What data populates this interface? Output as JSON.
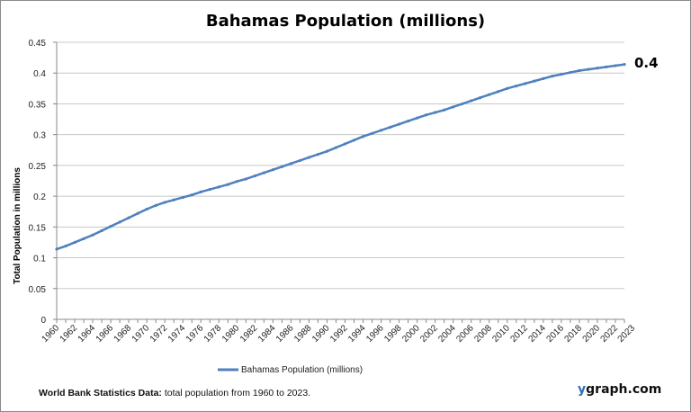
{
  "chart_data": {
    "type": "line",
    "title": "Bahamas Population (millions)",
    "xlabel": "",
    "ylabel": "Total Population  in millions",
    "ylim": [
      0,
      0.45
    ],
    "yticks": [
      "0",
      "0.05",
      "0.1",
      "0.15",
      "0.2",
      "0.25",
      "0.3",
      "0.35",
      "0.4",
      "0.45"
    ],
    "grid": true,
    "legend_position": "bottom",
    "end_label": "0.4",
    "color": "#4f81bd",
    "series": [
      {
        "name": "Bahamas Population (millions)",
        "x": [
          1960,
          1961,
          1962,
          1963,
          1964,
          1965,
          1966,
          1967,
          1968,
          1969,
          1970,
          1971,
          1972,
          1973,
          1974,
          1975,
          1976,
          1977,
          1978,
          1979,
          1980,
          1981,
          1982,
          1983,
          1984,
          1985,
          1986,
          1987,
          1988,
          1989,
          1990,
          1991,
          1992,
          1993,
          1994,
          1995,
          1996,
          1997,
          1998,
          1999,
          2000,
          2001,
          2002,
          2003,
          2004,
          2005,
          2006,
          2007,
          2008,
          2009,
          2010,
          2011,
          2012,
          2013,
          2014,
          2015,
          2016,
          2017,
          2018,
          2019,
          2020,
          2021,
          2022,
          2023
        ],
        "values": [
          0.114,
          0.119,
          0.125,
          0.131,
          0.137,
          0.144,
          0.151,
          0.158,
          0.165,
          0.172,
          0.179,
          0.185,
          0.19,
          0.194,
          0.198,
          0.202,
          0.207,
          0.211,
          0.215,
          0.219,
          0.224,
          0.228,
          0.233,
          0.238,
          0.243,
          0.248,
          0.253,
          0.258,
          0.263,
          0.268,
          0.273,
          0.279,
          0.285,
          0.291,
          0.297,
          0.302,
          0.307,
          0.312,
          0.317,
          0.322,
          0.327,
          0.332,
          0.336,
          0.34,
          0.345,
          0.35,
          0.355,
          0.36,
          0.365,
          0.37,
          0.375,
          0.379,
          0.383,
          0.387,
          0.391,
          0.395,
          0.398,
          0.401,
          0.404,
          0.406,
          0.408,
          0.41,
          0.412,
          0.414
        ]
      }
    ],
    "xtick_labels": [
      "1960",
      "1962",
      "1964",
      "1966",
      "1968",
      "1970",
      "1972",
      "1974",
      "1976",
      "1978",
      "1980",
      "1982",
      "1984",
      "1986",
      "1988",
      "1990",
      "1992",
      "1994",
      "1996",
      "1998",
      "2000",
      "2002",
      "2004",
      "2006",
      "2008",
      "2010",
      "2012",
      "2014",
      "2016",
      "2018",
      "2020",
      "2022",
      "2023"
    ]
  },
  "footer": {
    "source_bold": "World Bank  Statistics  Data:",
    "source_text": " total population from 1960 to  2023."
  },
  "brand": {
    "y": "y",
    "rest": "graph.com"
  }
}
